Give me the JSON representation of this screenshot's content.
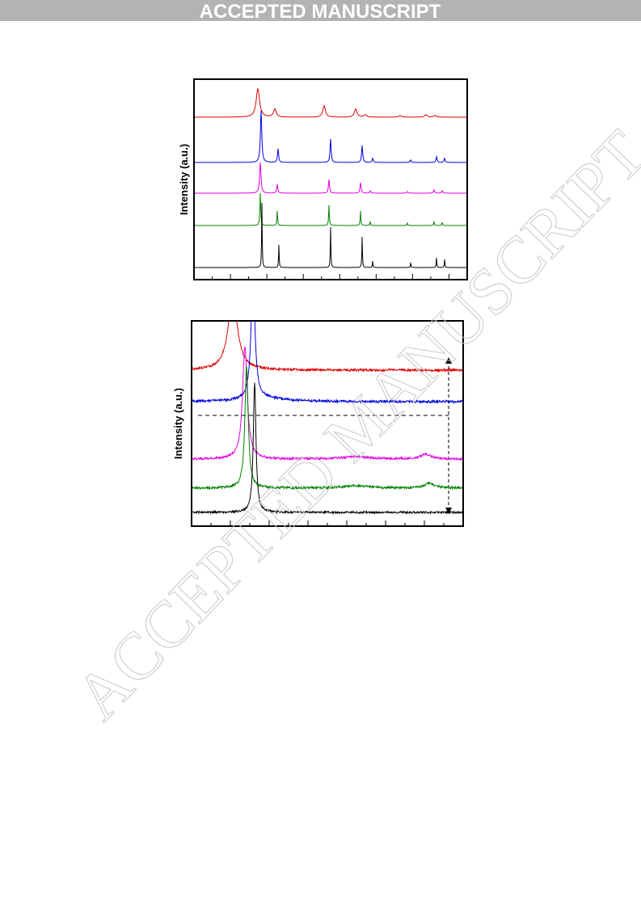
{
  "header": {
    "title": "ACCEPTED MANUSCRIPT"
  },
  "watermark": "ACCEPTED MANUSCRIPT",
  "figures": [
    {
      "y_label": "Intensity (a.u.)"
    },
    {
      "y_label": "Intensity (a.u.)"
    }
  ]
}
